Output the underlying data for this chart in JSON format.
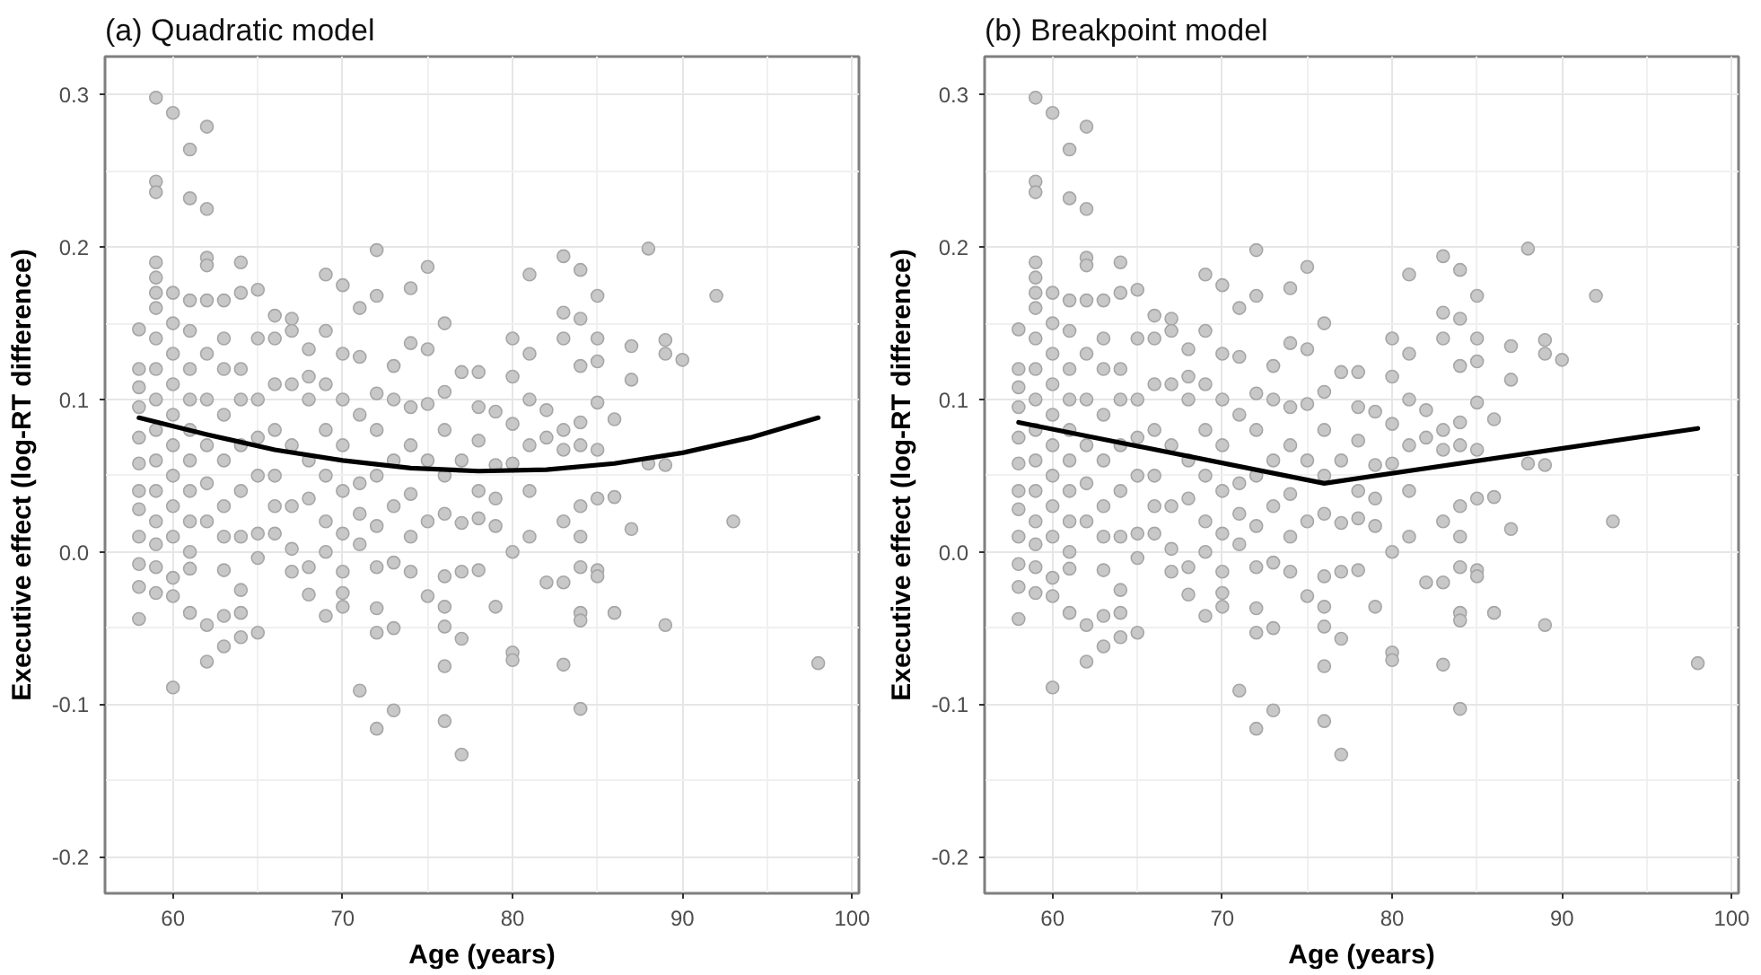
{
  "chart_data": [
    {
      "type": "scatter",
      "title": "(a) Quadratic model",
      "xlabel": "Age (years)",
      "ylabel": "Executive effect (log-RT difference)",
      "xlim": [
        56,
        100.4
      ],
      "ylim": [
        -0.224,
        0.325
      ],
      "xticks": [
        60,
        70,
        80,
        90,
        100
      ],
      "yticks": [
        -0.2,
        -0.1,
        {
          "value": 0,
          "label": "0.0"
        },
        0.1,
        0.2,
        0.3
      ],
      "grid": true,
      "marker": "circle",
      "series": [
        {
          "color": "#c8c8c8",
          "x": [
            59,
            60,
            61,
            62,
            59,
            59,
            61,
            62,
            58,
            58,
            58,
            58,
            58,
            58,
            58,
            58,
            58,
            58,
            58,
            58,
            59,
            59,
            59,
            59,
            59,
            59,
            59,
            59,
            59,
            59,
            59,
            59,
            59,
            59,
            60,
            60,
            60,
            60,
            60,
            60,
            60,
            60,
            60,
            60,
            60,
            60,
            61,
            61,
            61,
            61,
            61,
            61,
            61,
            61,
            61,
            61,
            61,
            62,
            62,
            62,
            62,
            62,
            62,
            62,
            62,
            62,
            62,
            63,
            63,
            63,
            63,
            63,
            63,
            63,
            63,
            63,
            63,
            64,
            64,
            64,
            64,
            64,
            64,
            64,
            64,
            64,
            64,
            65,
            65,
            65,
            65,
            65,
            65,
            65,
            65,
            66,
            66,
            66,
            66,
            66,
            66,
            66,
            67,
            67,
            67,
            67,
            67,
            67,
            67,
            68,
            68,
            68,
            68,
            68,
            68,
            68,
            69,
            69,
            69,
            69,
            69,
            69,
            69,
            69,
            70,
            70,
            70,
            70,
            70,
            70,
            70,
            70,
            70,
            71,
            71,
            71,
            71,
            71,
            71,
            71,
            72,
            72,
            72,
            72,
            72,
            72,
            72,
            72,
            72,
            72,
            73,
            73,
            73,
            73,
            73,
            73,
            73,
            74,
            74,
            74,
            74,
            74,
            74,
            74,
            75,
            75,
            75,
            75,
            75,
            75,
            76,
            76,
            76,
            76,
            76,
            76,
            76,
            76,
            76,
            76,
            77,
            77,
            77,
            77,
            77,
            77,
            78,
            78,
            78,
            78,
            78,
            78,
            79,
            79,
            79,
            79,
            79,
            80,
            80,
            80,
            80,
            80,
            80,
            80,
            81,
            81,
            81,
            81,
            81,
            81,
            82,
            82,
            82,
            83,
            83,
            83,
            83,
            83,
            83,
            83,
            83,
            84,
            84,
            84,
            84,
            84,
            84,
            84,
            84,
            84,
            84,
            84,
            85,
            85,
            85,
            85,
            85,
            85,
            85,
            85,
            86,
            86,
            86,
            87,
            87,
            87,
            88,
            88,
            89,
            89,
            89,
            89,
            90,
            92,
            93,
            98
          ],
          "values": [
            0.298,
            0.288,
            0.264,
            0.279,
            0.243,
            0.236,
            0.232,
            0.225,
            0.146,
            0.12,
            0.108,
            0.095,
            0.075,
            0.058,
            0.04,
            0.028,
            0.01,
            -0.008,
            -0.023,
            -0.044,
            0.19,
            0.18,
            0.17,
            0.16,
            0.14,
            0.12,
            0.1,
            0.08,
            0.06,
            0.04,
            0.02,
            0.005,
            -0.01,
            -0.027,
            0.17,
            0.15,
            0.13,
            0.11,
            0.09,
            0.07,
            0.05,
            0.03,
            0.01,
            -0.017,
            -0.029,
            -0.089,
            0.165,
            0.145,
            0.12,
            0.1,
            0.08,
            0.06,
            0.04,
            0.02,
            0.0,
            -0.011,
            -0.04,
            0.193,
            0.188,
            0.165,
            0.13,
            0.1,
            0.07,
            0.045,
            0.02,
            -0.048,
            -0.072,
            0.165,
            0.14,
            0.12,
            0.09,
            0.06,
            0.03,
            0.01,
            -0.012,
            -0.042,
            -0.062,
            0.19,
            0.17,
            0.12,
            0.1,
            0.07,
            0.04,
            0.01,
            -0.025,
            -0.04,
            -0.056,
            0.172,
            0.14,
            0.1,
            0.075,
            0.05,
            0.012,
            -0.004,
            -0.053,
            0.155,
            0.14,
            0.11,
            0.08,
            0.05,
            0.03,
            0.012,
            0.153,
            0.145,
            0.11,
            0.07,
            0.03,
            0.002,
            -0.013,
            0.133,
            0.115,
            0.1,
            0.06,
            0.035,
            -0.01,
            -0.028,
            0.182,
            0.145,
            0.11,
            0.08,
            0.05,
            0.02,
            0.0,
            -0.042,
            0.175,
            0.13,
            0.1,
            0.07,
            0.04,
            0.012,
            -0.013,
            -0.027,
            -0.036,
            0.16,
            0.128,
            0.09,
            0.045,
            0.025,
            0.005,
            -0.091,
            0.198,
            0.168,
            0.104,
            0.08,
            0.05,
            0.017,
            -0.01,
            -0.037,
            -0.053,
            -0.116,
            0.122,
            0.1,
            0.06,
            0.03,
            -0.007,
            -0.05,
            -0.104,
            0.173,
            0.137,
            0.095,
            0.07,
            0.038,
            0.01,
            -0.013,
            0.187,
            0.133,
            0.097,
            0.06,
            0.02,
            -0.029,
            0.15,
            0.105,
            0.08,
            0.05,
            0.025,
            -0.016,
            -0.036,
            -0.049,
            -0.075,
            -0.111,
            0.118,
            0.06,
            0.019,
            -0.013,
            -0.057,
            -0.133,
            0.118,
            0.095,
            0.073,
            0.04,
            0.022,
            -0.012,
            0.092,
            0.057,
            0.035,
            0.017,
            -0.036,
            0.14,
            0.115,
            0.084,
            0.058,
            0.0,
            -0.066,
            -0.071,
            0.182,
            0.13,
            0.1,
            0.07,
            0.04,
            0.01,
            0.093,
            0.075,
            -0.02,
            0.194,
            0.157,
            0.14,
            0.08,
            0.067,
            0.02,
            -0.02,
            -0.074,
            0.185,
            0.153,
            0.122,
            0.085,
            0.07,
            0.03,
            0.01,
            -0.01,
            -0.04,
            -0.045,
            -0.103,
            0.168,
            0.14,
            0.125,
            0.098,
            0.067,
            0.035,
            -0.012,
            -0.016,
            0.087,
            0.036,
            -0.04,
            0.135,
            0.113,
            0.015,
            0.199,
            0.058,
            0.139,
            0.13,
            0.057,
            -0.048,
            0.126,
            0.168,
            0.02,
            -0.073
          ]
        },
        {
          "type": "line",
          "marker": "none",
          "color": "#000000",
          "x": [
            58,
            62,
            66,
            70,
            74,
            78,
            82,
            86,
            90,
            94,
            98
          ],
          "values": [
            0.088,
            0.077,
            0.067,
            0.06,
            0.055,
            0.053,
            0.054,
            0.058,
            0.065,
            0.075,
            0.088
          ]
        }
      ]
    },
    {
      "type": "scatter",
      "title": "(b) Breakpoint model",
      "xlabel": "Age (years)",
      "ylabel": "Executive effect (log-RT difference)",
      "xlim": [
        56,
        100.4
      ],
      "ylim": [
        -0.224,
        0.325
      ],
      "xticks": [
        60,
        70,
        80,
        90,
        100
      ],
      "yticks": [
        -0.2,
        -0.1,
        {
          "value": 0,
          "label": "0.0"
        },
        0.1,
        0.2,
        0.3
      ],
      "grid": true,
      "marker": "circle",
      "series": [
        {
          "color": "#c8c8c8",
          "x": [
            59,
            60,
            61,
            62,
            59,
            59,
            61,
            62,
            58,
            58,
            58,
            58,
            58,
            58,
            58,
            58,
            58,
            58,
            58,
            58,
            59,
            59,
            59,
            59,
            59,
            59,
            59,
            59,
            59,
            59,
            59,
            59,
            59,
            59,
            60,
            60,
            60,
            60,
            60,
            60,
            60,
            60,
            60,
            60,
            60,
            60,
            61,
            61,
            61,
            61,
            61,
            61,
            61,
            61,
            61,
            61,
            61,
            62,
            62,
            62,
            62,
            62,
            62,
            62,
            62,
            62,
            62,
            63,
            63,
            63,
            63,
            63,
            63,
            63,
            63,
            63,
            63,
            64,
            64,
            64,
            64,
            64,
            64,
            64,
            64,
            64,
            64,
            65,
            65,
            65,
            65,
            65,
            65,
            65,
            65,
            66,
            66,
            66,
            66,
            66,
            66,
            66,
            67,
            67,
            67,
            67,
            67,
            67,
            67,
            68,
            68,
            68,
            68,
            68,
            68,
            68,
            69,
            69,
            69,
            69,
            69,
            69,
            69,
            69,
            70,
            70,
            70,
            70,
            70,
            70,
            70,
            70,
            70,
            71,
            71,
            71,
            71,
            71,
            71,
            71,
            72,
            72,
            72,
            72,
            72,
            72,
            72,
            72,
            72,
            72,
            73,
            73,
            73,
            73,
            73,
            73,
            73,
            74,
            74,
            74,
            74,
            74,
            74,
            74,
            75,
            75,
            75,
            75,
            75,
            75,
            76,
            76,
            76,
            76,
            76,
            76,
            76,
            76,
            76,
            76,
            77,
            77,
            77,
            77,
            77,
            77,
            78,
            78,
            78,
            78,
            78,
            78,
            79,
            79,
            79,
            79,
            79,
            80,
            80,
            80,
            80,
            80,
            80,
            80,
            81,
            81,
            81,
            81,
            81,
            81,
            82,
            82,
            82,
            83,
            83,
            83,
            83,
            83,
            83,
            83,
            83,
            84,
            84,
            84,
            84,
            84,
            84,
            84,
            84,
            84,
            84,
            84,
            85,
            85,
            85,
            85,
            85,
            85,
            85,
            85,
            86,
            86,
            86,
            87,
            87,
            87,
            88,
            88,
            89,
            89,
            89,
            89,
            90,
            92,
            93,
            98
          ],
          "values": [
            0.298,
            0.288,
            0.264,
            0.279,
            0.243,
            0.236,
            0.232,
            0.225,
            0.146,
            0.12,
            0.108,
            0.095,
            0.075,
            0.058,
            0.04,
            0.028,
            0.01,
            -0.008,
            -0.023,
            -0.044,
            0.19,
            0.18,
            0.17,
            0.16,
            0.14,
            0.12,
            0.1,
            0.08,
            0.06,
            0.04,
            0.02,
            0.005,
            -0.01,
            -0.027,
            0.17,
            0.15,
            0.13,
            0.11,
            0.09,
            0.07,
            0.05,
            0.03,
            0.01,
            -0.017,
            -0.029,
            -0.089,
            0.165,
            0.145,
            0.12,
            0.1,
            0.08,
            0.06,
            0.04,
            0.02,
            0.0,
            -0.011,
            -0.04,
            0.193,
            0.188,
            0.165,
            0.13,
            0.1,
            0.07,
            0.045,
            0.02,
            -0.048,
            -0.072,
            0.165,
            0.14,
            0.12,
            0.09,
            0.06,
            0.03,
            0.01,
            -0.012,
            -0.042,
            -0.062,
            0.19,
            0.17,
            0.12,
            0.1,
            0.07,
            0.04,
            0.01,
            -0.025,
            -0.04,
            -0.056,
            0.172,
            0.14,
            0.1,
            0.075,
            0.05,
            0.012,
            -0.004,
            -0.053,
            0.155,
            0.14,
            0.11,
            0.08,
            0.05,
            0.03,
            0.012,
            0.153,
            0.145,
            0.11,
            0.07,
            0.03,
            0.002,
            -0.013,
            0.133,
            0.115,
            0.1,
            0.06,
            0.035,
            -0.01,
            -0.028,
            0.182,
            0.145,
            0.11,
            0.08,
            0.05,
            0.02,
            0.0,
            -0.042,
            0.175,
            0.13,
            0.1,
            0.07,
            0.04,
            0.012,
            -0.013,
            -0.027,
            -0.036,
            0.16,
            0.128,
            0.09,
            0.045,
            0.025,
            0.005,
            -0.091,
            0.198,
            0.168,
            0.104,
            0.08,
            0.05,
            0.017,
            -0.01,
            -0.037,
            -0.053,
            -0.116,
            0.122,
            0.1,
            0.06,
            0.03,
            -0.007,
            -0.05,
            -0.104,
            0.173,
            0.137,
            0.095,
            0.07,
            0.038,
            0.01,
            -0.013,
            0.187,
            0.133,
            0.097,
            0.06,
            0.02,
            -0.029,
            0.15,
            0.105,
            0.08,
            0.05,
            0.025,
            -0.016,
            -0.036,
            -0.049,
            -0.075,
            -0.111,
            0.118,
            0.06,
            0.019,
            -0.013,
            -0.057,
            -0.133,
            0.118,
            0.095,
            0.073,
            0.04,
            0.022,
            -0.012,
            0.092,
            0.057,
            0.035,
            0.017,
            -0.036,
            0.14,
            0.115,
            0.084,
            0.058,
            0.0,
            -0.066,
            -0.071,
            0.182,
            0.13,
            0.1,
            0.07,
            0.04,
            0.01,
            0.093,
            0.075,
            -0.02,
            0.194,
            0.157,
            0.14,
            0.08,
            0.067,
            0.02,
            -0.02,
            -0.074,
            0.185,
            0.153,
            0.122,
            0.085,
            0.07,
            0.03,
            0.01,
            -0.01,
            -0.04,
            -0.045,
            -0.103,
            0.168,
            0.14,
            0.125,
            0.098,
            0.067,
            0.035,
            -0.012,
            -0.016,
            0.087,
            0.036,
            -0.04,
            0.135,
            0.113,
            0.015,
            0.199,
            0.058,
            0.139,
            0.13,
            0.057,
            -0.048,
            0.126,
            0.168,
            0.02,
            -0.073
          ]
        },
        {
          "type": "line",
          "marker": "none",
          "color": "#000000",
          "x": [
            58,
            76,
            98
          ],
          "values": [
            0.085,
            0.045,
            0.081
          ]
        }
      ]
    }
  ]
}
